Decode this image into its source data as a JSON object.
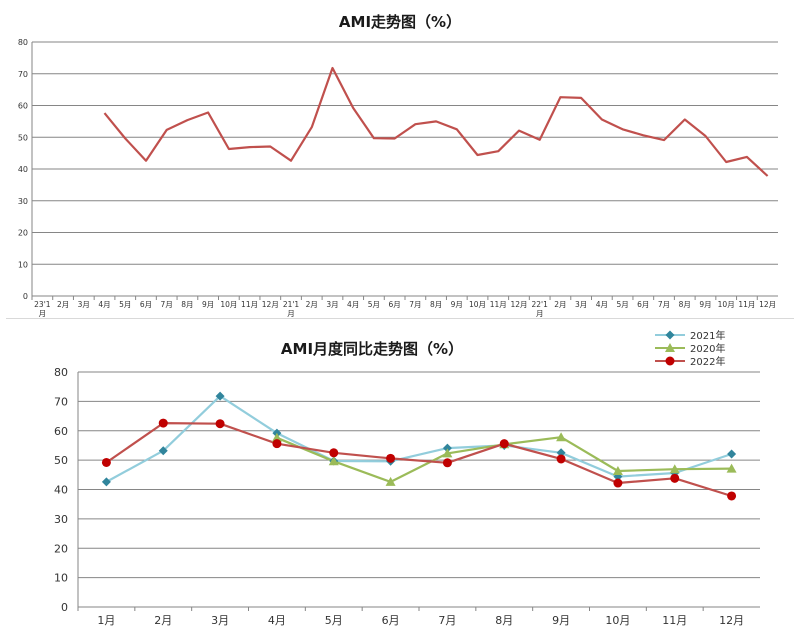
{
  "chart_data": [
    {
      "type": "line",
      "title": "AMI走势图（%）",
      "xlabel": "",
      "ylabel": "",
      "ylim": [
        0,
        80
      ],
      "yticks": [
        "0",
        "10",
        "20",
        "30",
        "40",
        "50",
        "60",
        "70",
        "80"
      ],
      "grid": true,
      "categories": [
        [
          "23'1",
          "月"
        ],
        [
          "2月"
        ],
        [
          "3月"
        ],
        [
          "4月"
        ],
        [
          "5月"
        ],
        [
          "6月"
        ],
        [
          "7月"
        ],
        [
          "8月"
        ],
        [
          "9月"
        ],
        [
          "10月"
        ],
        [
          "11月"
        ],
        [
          "12月"
        ],
        [
          "21'1",
          "月"
        ],
        [
          "2月"
        ],
        [
          "3月"
        ],
        [
          "4月"
        ],
        [
          "5月"
        ],
        [
          "6月"
        ],
        [
          "7月"
        ],
        [
          "8月"
        ],
        [
          "9月"
        ],
        [
          "10月"
        ],
        [
          "11月"
        ],
        [
          "12月"
        ],
        [
          "22'1",
          "月"
        ],
        [
          "2月"
        ],
        [
          "3月"
        ],
        [
          "4月"
        ],
        [
          "5月"
        ],
        [
          "6月"
        ],
        [
          "7月"
        ],
        [
          "8月"
        ],
        [
          "9月"
        ],
        [
          "10月"
        ],
        [
          "11月"
        ],
        [
          "12月"
        ]
      ],
      "series": [
        {
          "color": "#c0504d",
          "values": [
            null,
            null,
            null,
            57.6,
            49.6,
            42.6,
            52.3,
            55.4,
            57.8,
            46.3,
            46.9,
            47.1,
            42.6,
            53.2,
            71.8,
            59.2,
            49.7,
            49.6,
            54.1,
            55.0,
            52.5,
            44.4,
            45.6,
            52.1,
            49.2,
            62.6,
            62.4,
            55.6,
            52.5,
            50.6,
            49.1,
            55.6,
            50.4,
            42.2,
            43.8,
            37.8
          ]
        }
      ]
    },
    {
      "type": "line",
      "title": "AMI月度同比走势图（%）",
      "xlabel": "",
      "ylabel": "",
      "ylim": [
        0,
        80
      ],
      "yticks": [
        "0",
        "10",
        "20",
        "30",
        "40",
        "50",
        "60",
        "70",
        "80"
      ],
      "grid": true,
      "legend_position": "top-right",
      "categories": [
        "1月",
        "2月",
        "3月",
        "4月",
        "5月",
        "6月",
        "7月",
        "8月",
        "9月",
        "10月",
        "11月",
        "12月"
      ],
      "series": [
        {
          "name": "2021年",
          "color": "#92cddc",
          "marker_color": "#31859c",
          "marker": "diamond",
          "values": [
            42.6,
            53.2,
            71.8,
            59.2,
            49.7,
            49.6,
            54.1,
            55.0,
            52.5,
            44.4,
            45.6,
            52.1
          ]
        },
        {
          "name": "2020年",
          "color": "#9bbb59",
          "marker_color": "#9bbb59",
          "marker": "triangle",
          "values": [
            null,
            null,
            null,
            57.6,
            49.6,
            42.6,
            52.3,
            55.4,
            57.8,
            46.3,
            46.9,
            47.1
          ]
        },
        {
          "name": "2022年",
          "color": "#c0504d",
          "marker_color": "#c00000",
          "marker": "circle",
          "values": [
            49.2,
            62.6,
            62.4,
            55.6,
            52.5,
            50.6,
            49.1,
            55.6,
            50.4,
            42.2,
            43.8,
            37.8
          ]
        }
      ]
    }
  ]
}
